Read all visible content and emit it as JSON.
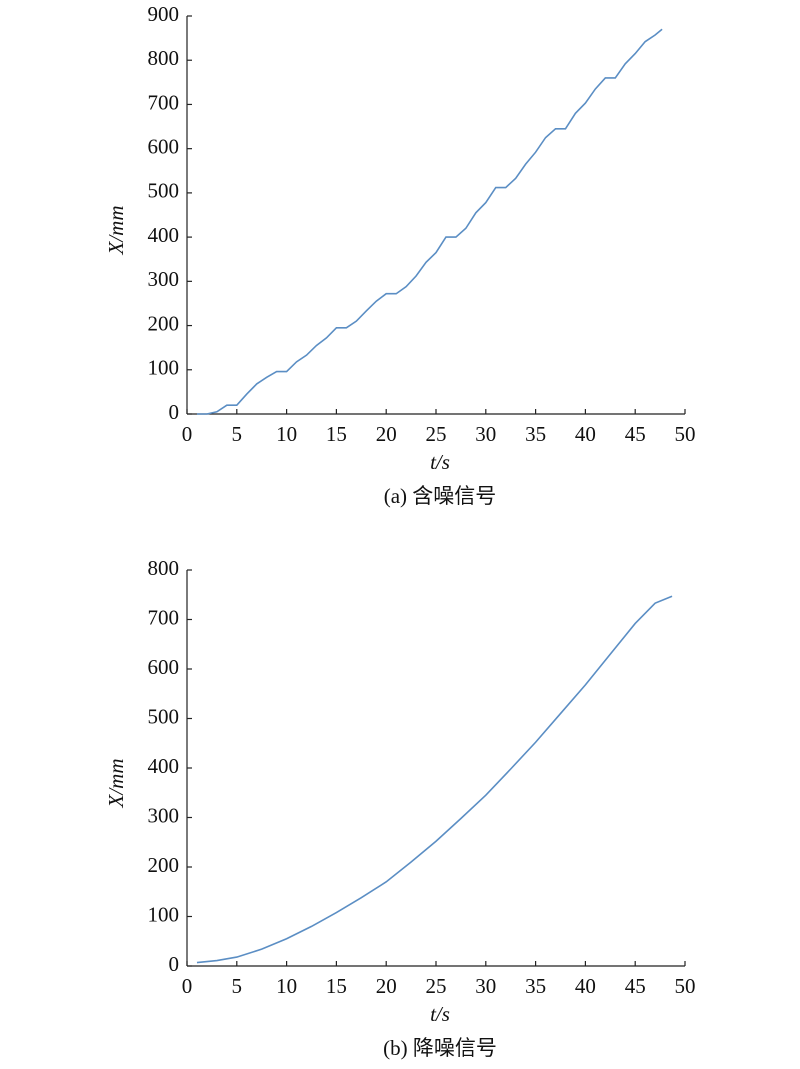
{
  "chart_data": [
    {
      "type": "line",
      "caption": "(a) 含噪信号",
      "xlabel": "t/s",
      "ylabel": "X/mm",
      "xlim": [
        0,
        50
      ],
      "ylim": [
        0,
        900
      ],
      "xticks": [
        0,
        5,
        10,
        15,
        20,
        25,
        30,
        35,
        40,
        45,
        50
      ],
      "yticks": [
        0,
        100,
        200,
        300,
        400,
        500,
        600,
        700,
        800,
        900
      ],
      "x": [
        1,
        2,
        3,
        4,
        5,
        6,
        7,
        8,
        9,
        10,
        11,
        12,
        13,
        14,
        15,
        16,
        17,
        18,
        19,
        20,
        21,
        22,
        23,
        24,
        25,
        26,
        27,
        28,
        29,
        30,
        31,
        32,
        33,
        34,
        35,
        36,
        37,
        38,
        39,
        40,
        41,
        42,
        43,
        44,
        45,
        46,
        47,
        47.7
      ],
      "series": [
        {
          "color": "#5b8ec4",
          "values": [
            0,
            0,
            5,
            20,
            20,
            45,
            68,
            83,
            96,
            96,
            118,
            133,
            155,
            172,
            195,
            195,
            210,
            233,
            255,
            272,
            272,
            288,
            312,
            343,
            365,
            400,
            400,
            420,
            455,
            478,
            512,
            512,
            533,
            565,
            592,
            625,
            645,
            645,
            680,
            703,
            735,
            760,
            760,
            792,
            815,
            842,
            857,
            870
          ]
        }
      ]
    },
    {
      "type": "line",
      "caption": "(b) 降噪信号",
      "xlabel": "t/s",
      "ylabel": "X/mm",
      "xlim": [
        0,
        50
      ],
      "ylim": [
        0,
        800
      ],
      "xticks": [
        0,
        5,
        10,
        15,
        20,
        25,
        30,
        35,
        40,
        45,
        50
      ],
      "yticks": [
        0,
        100,
        200,
        300,
        400,
        500,
        600,
        700,
        800
      ],
      "x": [
        1,
        3,
        5,
        7.5,
        10,
        12.5,
        15,
        17.5,
        20,
        22.5,
        25,
        27.5,
        30,
        32.5,
        35,
        37.5,
        40,
        42.5,
        45,
        47,
        48.7
      ],
      "series": [
        {
          "color": "#5b8ec4",
          "values": [
            7,
            11,
            18,
            34,
            55,
            80,
            108,
            138,
            170,
            210,
            252,
            298,
            345,
            398,
            452,
            510,
            568,
            630,
            692,
            733,
            747
          ]
        }
      ]
    }
  ]
}
